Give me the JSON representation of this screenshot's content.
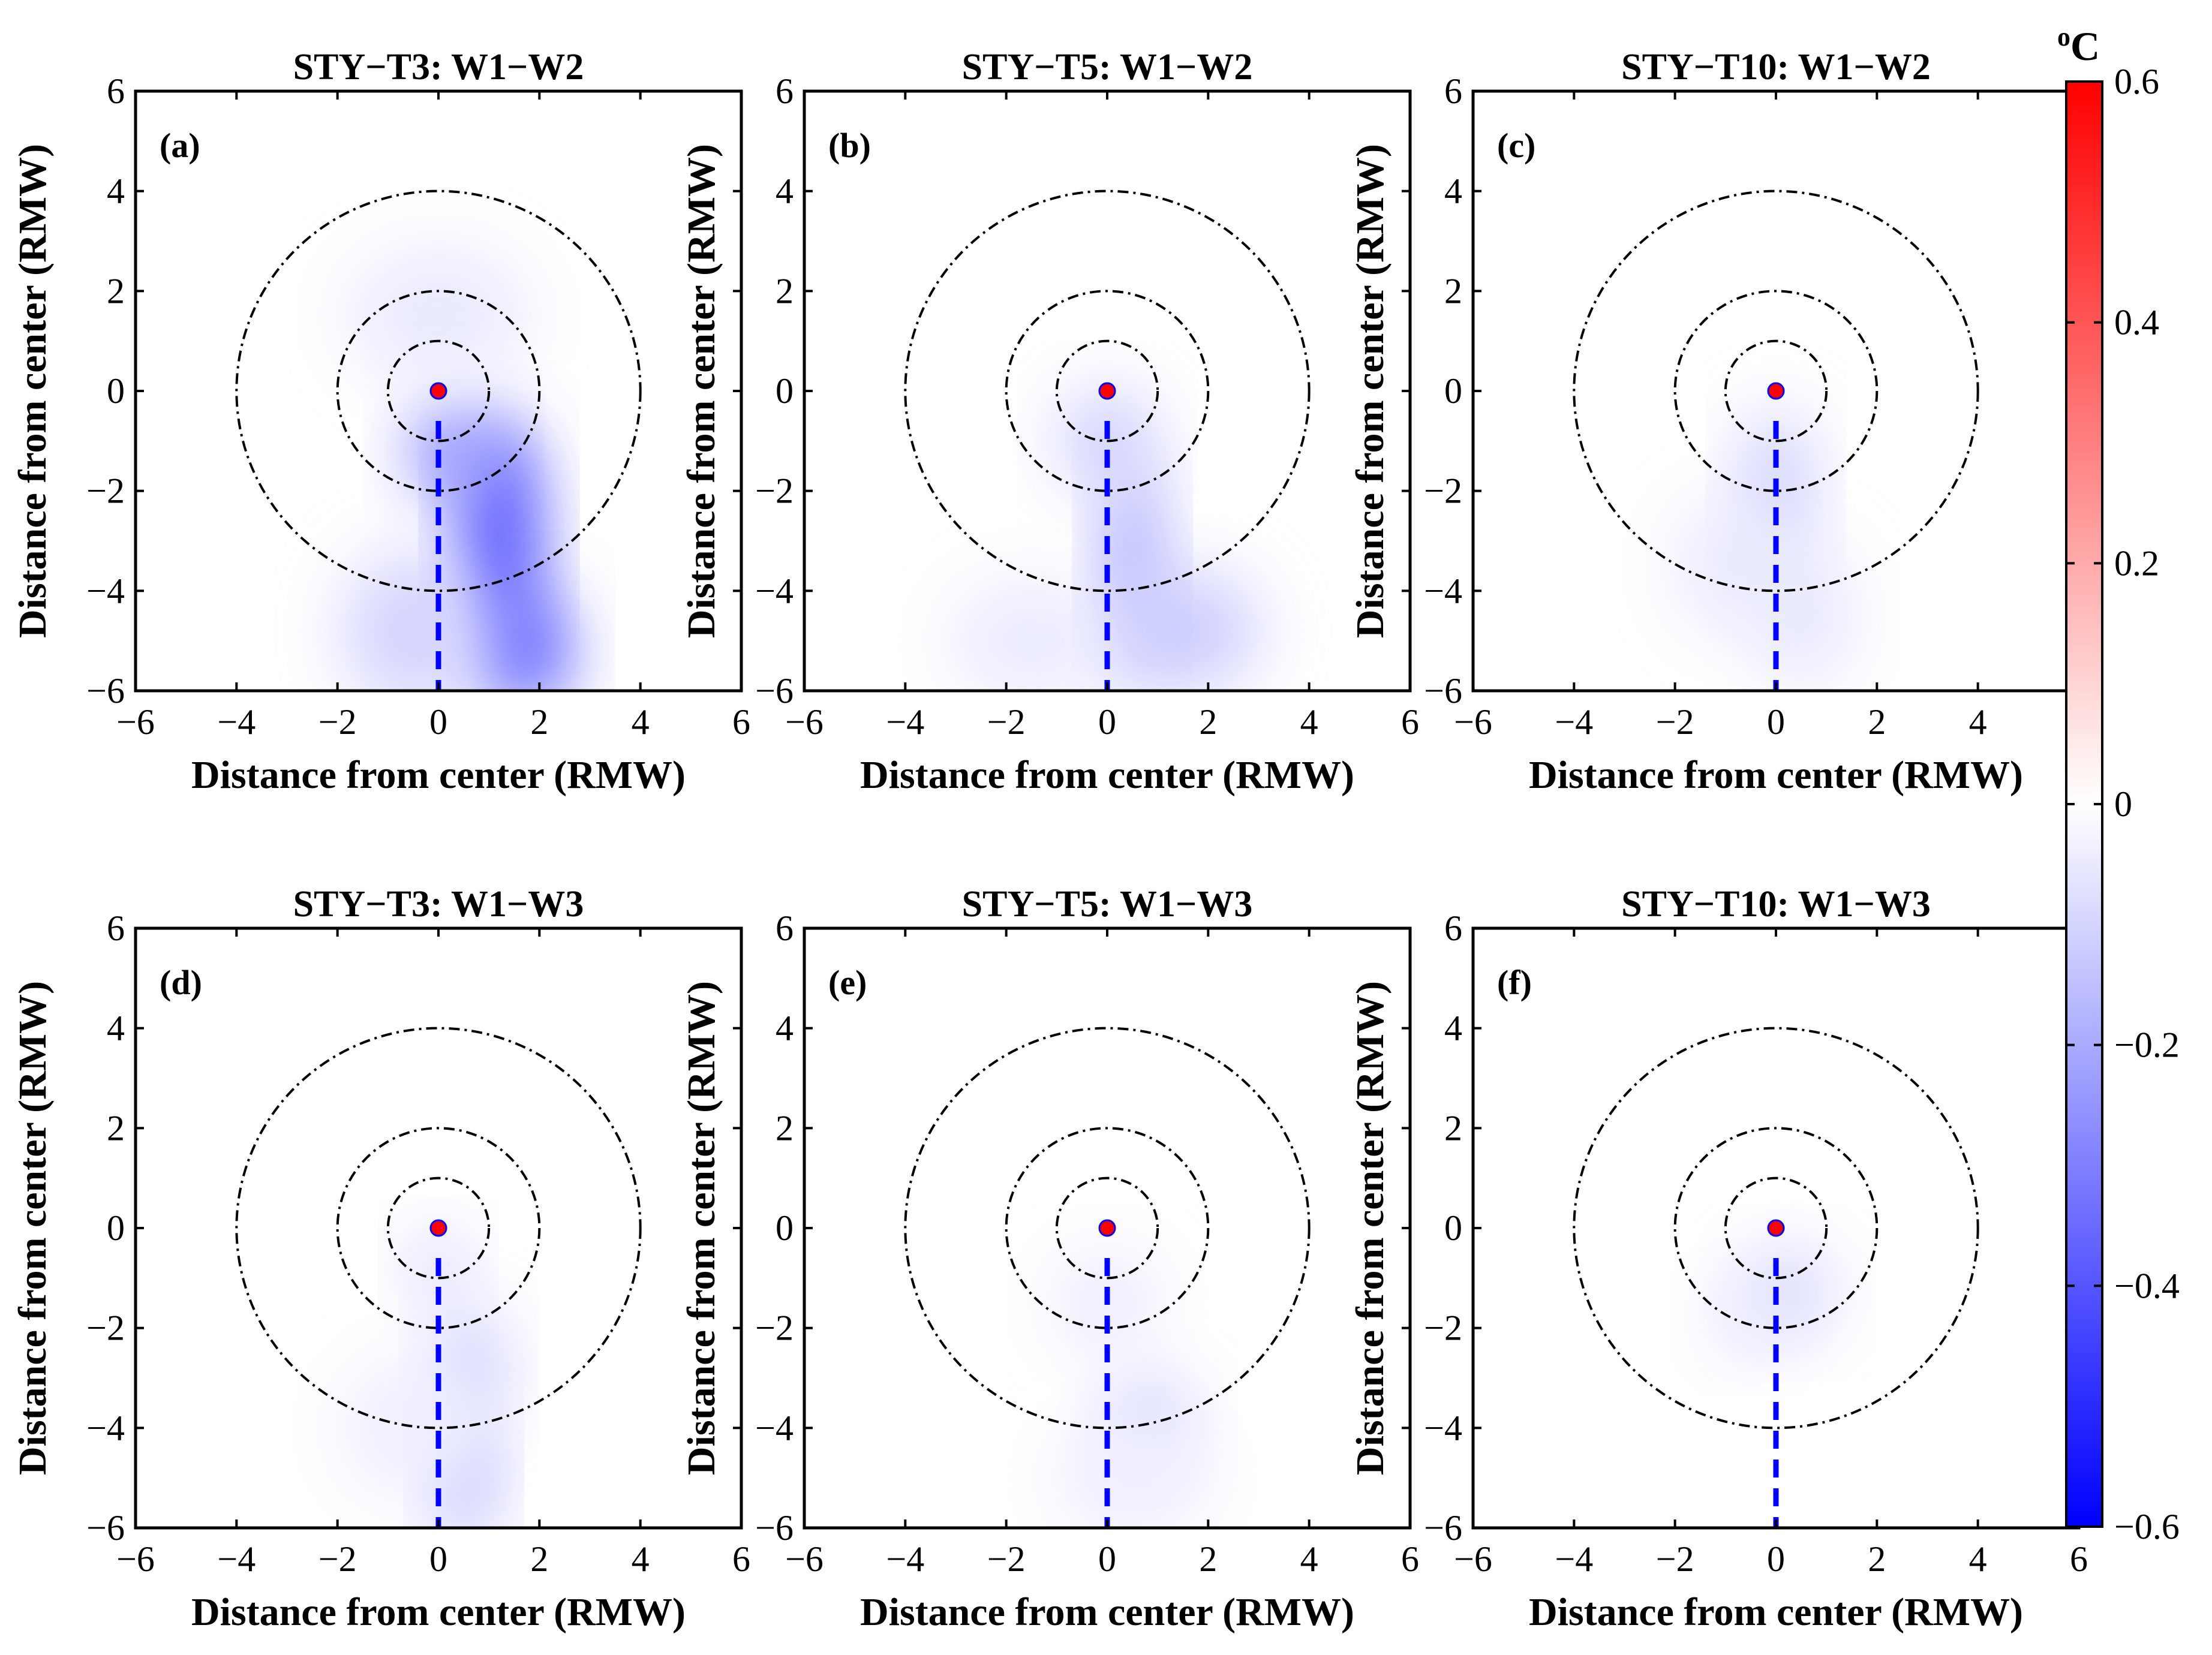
{
  "chart_data": {
    "type": "heatmap",
    "colorbar": {
      "unit": "oC",
      "unit_superscript": "o",
      "unit_letter": "C",
      "range": [
        -0.6,
        0.6
      ],
      "ticks": [
        "0.6",
        "0.4",
        "0.2",
        "0",
        "−0.2",
        "−0.4",
        "−0.6"
      ],
      "tick_values": [
        0.6,
        0.4,
        0.2,
        0,
        -0.2,
        -0.4,
        -0.6
      ],
      "colors": {
        "max": "#ff0000",
        "zero": "#ffffff",
        "min": "#0000ff"
      }
    },
    "shared_axes": {
      "xlabel": "Distance from center (RMW)",
      "ylabel": "Distance from center (RMW)",
      "xlim": [
        -6,
        6
      ],
      "ylim": [
        -6,
        6
      ],
      "xticks": [
        "−6",
        "−4",
        "−2",
        "0",
        "2",
        "4",
        "6"
      ],
      "yticks": [
        "6",
        "4",
        "2",
        "0",
        "−2",
        "−4",
        "−6"
      ],
      "tick_values": [
        -6,
        -4,
        -2,
        0,
        2,
        4,
        6
      ]
    },
    "circle_radii_rmw": [
      1,
      2,
      4
    ],
    "center_marker_color": "#ff0000",
    "track_line_color": "#0000ff",
    "track_line": {
      "x": 0,
      "y_from": -0.6,
      "y_to": -6
    },
    "panels": [
      {
        "label": "(a)",
        "title": "STY−T3: W1−W2",
        "min_value": -0.45,
        "features": [
          {
            "x": 1.2,
            "y": -3.0,
            "sx": 0.8,
            "sy": 2.4,
            "v": -0.42
          },
          {
            "x": 1.7,
            "y": -5.2,
            "sx": 0.9,
            "sy": 1.2,
            "v": -0.35
          },
          {
            "x": 0.3,
            "y": -1.2,
            "sx": 0.9,
            "sy": 1.0,
            "v": -0.25
          },
          {
            "x": -0.5,
            "y": -4.8,
            "sx": 1.4,
            "sy": 1.6,
            "v": -0.1
          },
          {
            "x": 0.0,
            "y": 1.5,
            "sx": 1.8,
            "sy": 1.4,
            "v": -0.05
          }
        ]
      },
      {
        "label": "(b)",
        "title": "STY−T5: W1−W2",
        "min_value": -0.25,
        "features": [
          {
            "x": 0.5,
            "y": -3.5,
            "sx": 0.6,
            "sy": 2.2,
            "v": -0.2
          },
          {
            "x": 1.5,
            "y": -4.8,
            "sx": 1.5,
            "sy": 1.2,
            "v": -0.12
          },
          {
            "x": 0.0,
            "y": -1.0,
            "sx": 0.9,
            "sy": 1.0,
            "v": -0.12
          },
          {
            "x": -1.5,
            "y": -5.0,
            "sx": 1.6,
            "sy": 1.2,
            "v": -0.05
          }
        ]
      },
      {
        "label": "(c)",
        "title": "STY−T10: W1−W2",
        "min_value": -0.15,
        "features": [
          {
            "x": 0.0,
            "y": -2.0,
            "sx": 0.7,
            "sy": 1.6,
            "v": -0.12
          },
          {
            "x": 0.5,
            "y": -4.5,
            "sx": 1.0,
            "sy": 1.4,
            "v": -0.06
          },
          {
            "x": -0.8,
            "y": -3.5,
            "sx": 1.2,
            "sy": 1.4,
            "v": -0.05
          }
        ]
      },
      {
        "label": "(d)",
        "title": "STY−T3: W1−W3",
        "min_value": -0.2,
        "features": [
          {
            "x": 0.5,
            "y": -5.0,
            "sx": 0.6,
            "sy": 1.2,
            "v": -0.18
          },
          {
            "x": 0.6,
            "y": -2.8,
            "sx": 0.7,
            "sy": 1.2,
            "v": -0.12
          },
          {
            "x": 0.0,
            "y": -0.8,
            "sx": 0.6,
            "sy": 0.7,
            "v": -0.1
          },
          {
            "x": -0.5,
            "y": -4.0,
            "sx": 1.4,
            "sy": 1.4,
            "v": -0.04
          }
        ]
      },
      {
        "label": "(e)",
        "title": "STY−T5: W1−W3",
        "min_value": -0.12,
        "features": [
          {
            "x": 0.8,
            "y": -3.8,
            "sx": 0.9,
            "sy": 0.9,
            "v": -0.1
          },
          {
            "x": 0.0,
            "y": -1.5,
            "sx": 1.0,
            "sy": 1.0,
            "v": -0.05
          },
          {
            "x": 0.5,
            "y": -5.0,
            "sx": 1.5,
            "sy": 1.2,
            "v": -0.04
          }
        ]
      },
      {
        "label": "(f)",
        "title": "STY−T10: W1−W3",
        "min_value": -0.12,
        "features": [
          {
            "x": 0.2,
            "y": -1.3,
            "sx": 0.9,
            "sy": 0.9,
            "v": -0.1
          },
          {
            "x": -0.5,
            "y": -1.8,
            "sx": 0.8,
            "sy": 0.8,
            "v": -0.05
          }
        ]
      }
    ]
  }
}
